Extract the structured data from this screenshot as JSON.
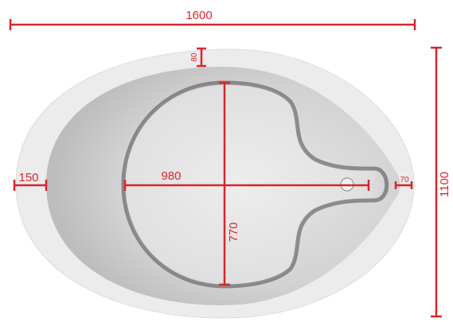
{
  "dimensions": {
    "length": "1600",
    "rim": "80",
    "side": "150",
    "basin_length": "980",
    "tail": "70",
    "width": "1100",
    "basin_width": "770"
  }
}
